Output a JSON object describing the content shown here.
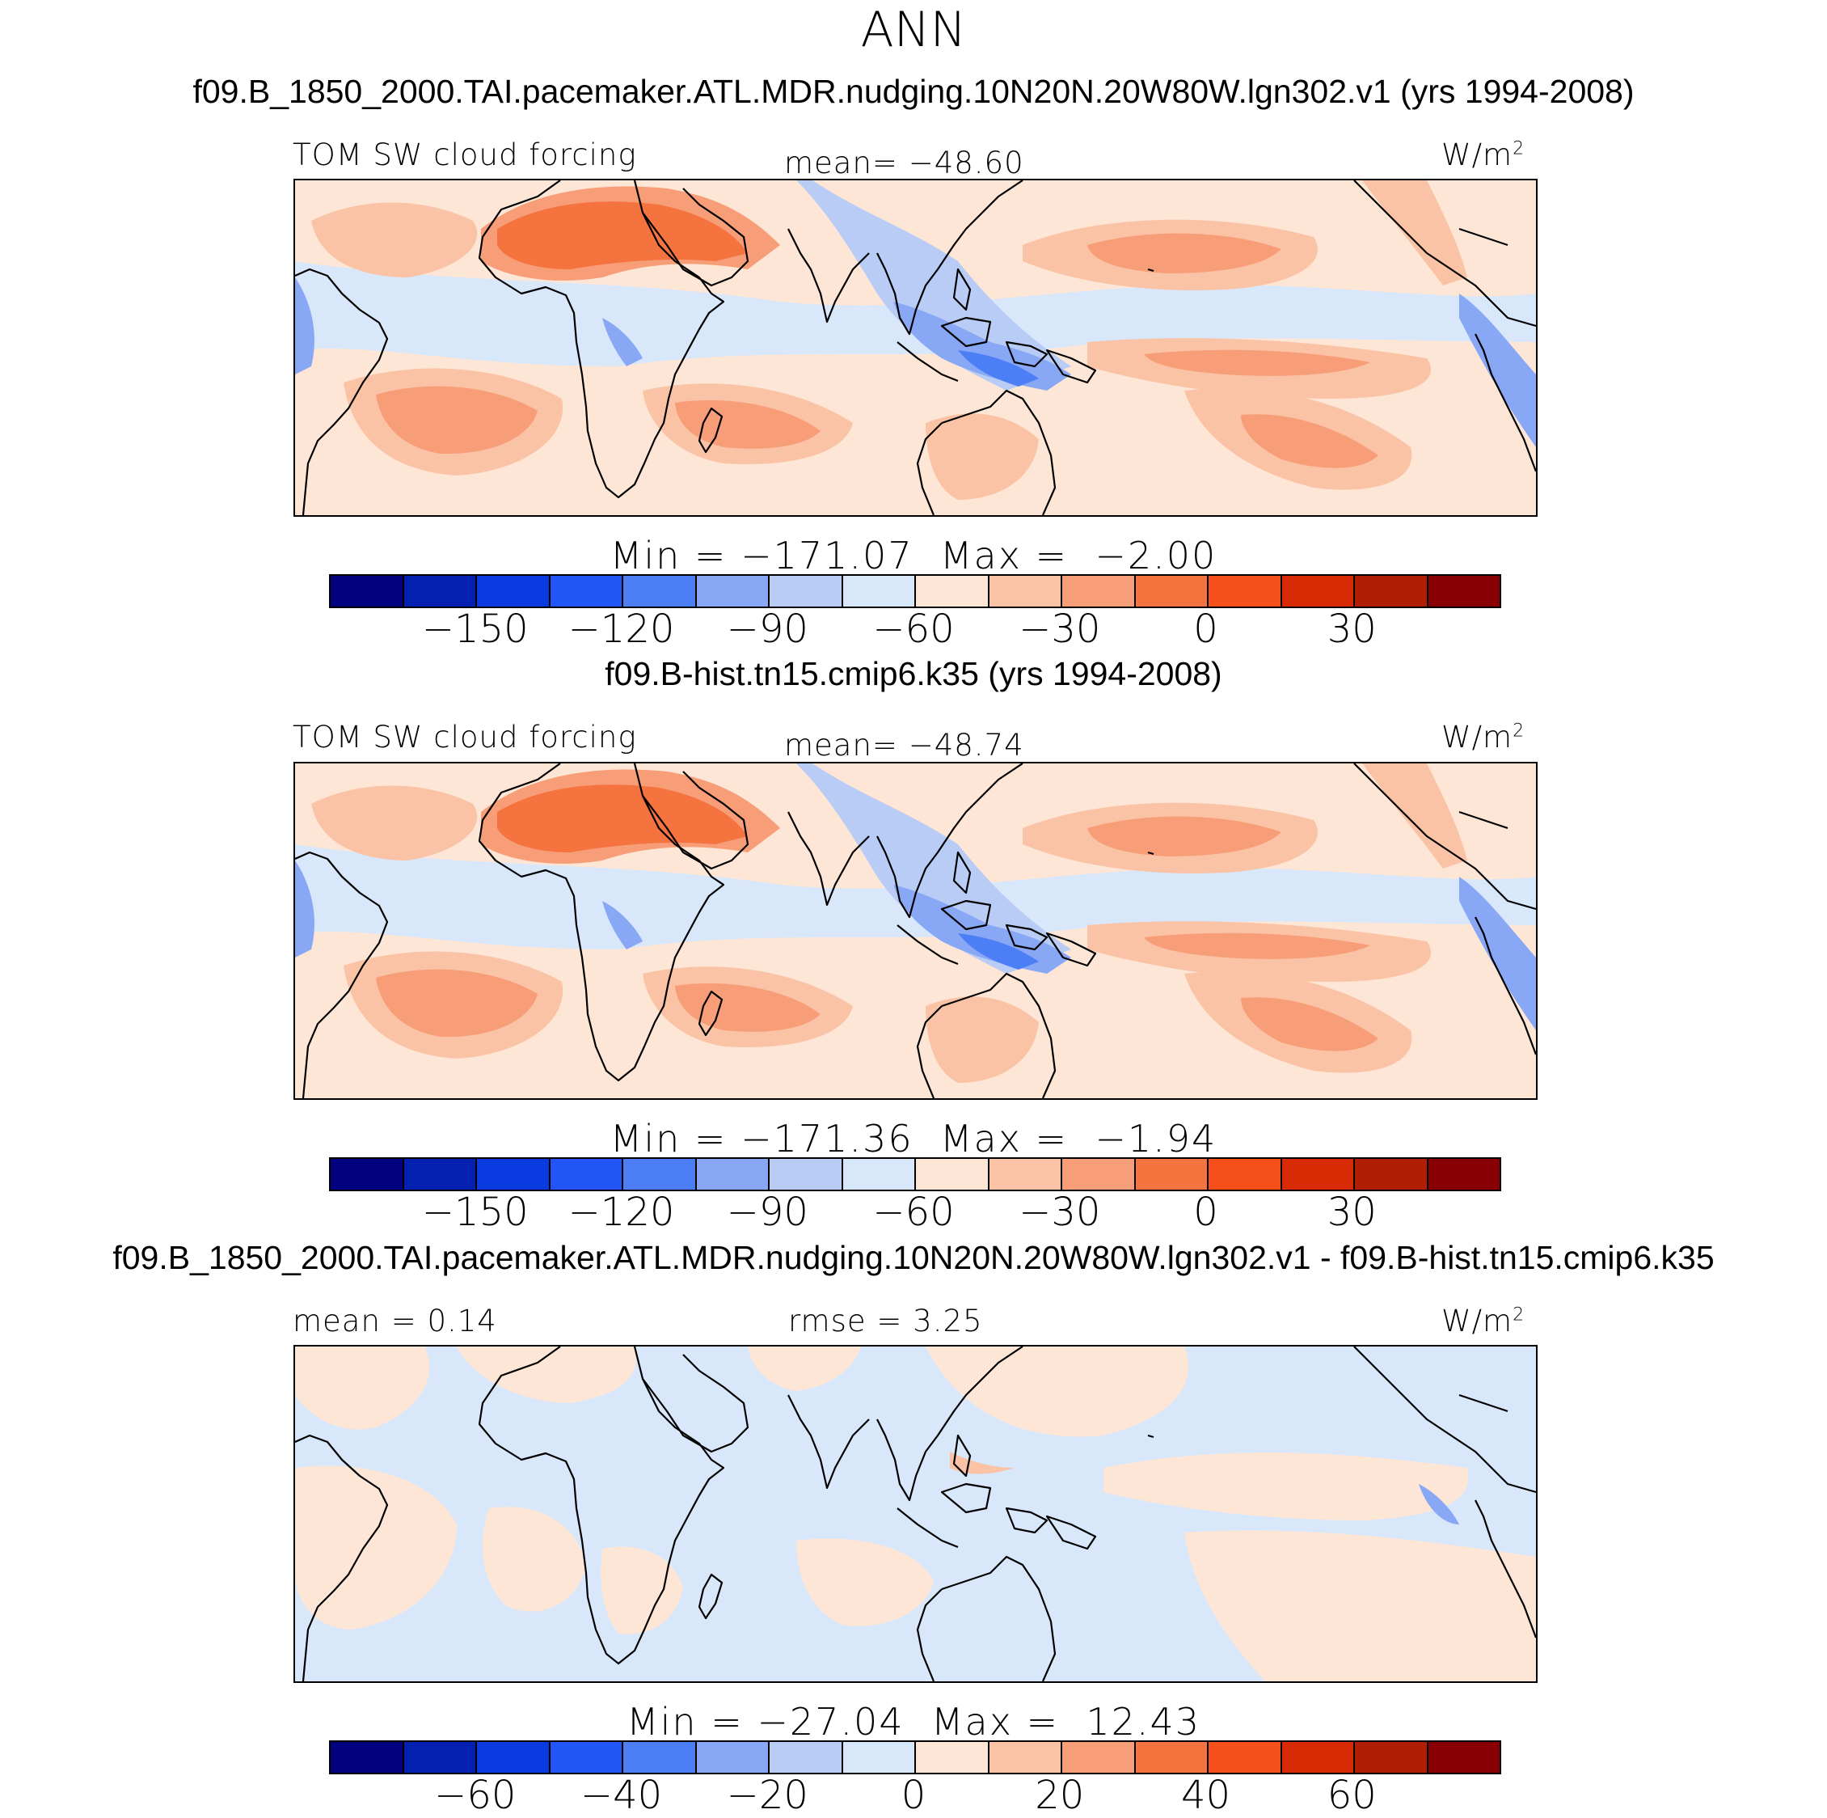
{
  "page": {
    "main_title": "ANN"
  },
  "panels": [
    {
      "case_title": "f09.B_1850_2000.TAI.pacemaker.ATL.MDR.nudging.10N20N.20W80W.lgn302.v1 (yrs 1994-2008)",
      "left_label": "TOM SW cloud forcing",
      "center_label": "mean= −48.60",
      "units": "W/m",
      "units_sup": "2",
      "min_max": "Min = −171.07  Max =  −2.00",
      "ticks": [
        "−150",
        "−120",
        "−90",
        "−60",
        "−30",
        "0",
        "30"
      ],
      "map_kind": "field"
    },
    {
      "case_title": "f09.B-hist.tn15.cmip6.k35 (yrs 1994-2008)",
      "left_label": "TOM SW cloud forcing",
      "center_label": "mean= −48.74",
      "units": "W/m",
      "units_sup": "2",
      "min_max": "Min = −171.36  Max =  −1.94",
      "ticks": [
        "−150",
        "−120",
        "−90",
        "−60",
        "−30",
        "0",
        "30"
      ],
      "map_kind": "field"
    },
    {
      "case_title": "f09.B_1850_2000.TAI.pacemaker.ATL.MDR.nudging.10N20N.20W80W.lgn302.v1 - f09.B-hist.tn15.cmip6.k35",
      "left_label": "mean =   0.14",
      "center_label": "rmse =   3.25",
      "units": "W/m",
      "units_sup": "2",
      "min_max": "Min = −27.04  Max =  12.43",
      "ticks": [
        "−60",
        "−40",
        "−20",
        "0",
        "20",
        "40",
        "60"
      ],
      "map_kind": "diff"
    }
  ],
  "colorbar": {
    "colors": [
      "#02017e",
      "#0320b0",
      "#0a3be0",
      "#2255f5",
      "#4c7ff5",
      "#88a7f5",
      "#b8ccf5",
      "#d9e7fb",
      "#fde6d6",
      "#fbc3a6",
      "#f79d78",
      "#f5733f",
      "#f5501a",
      "#d82a05",
      "#b01e04",
      "#880003"
    ],
    "tick_positions": [
      2,
      4,
      6,
      8,
      10,
      12,
      14
    ]
  },
  "map_colors": {
    "land_line": "#000000",
    "blue_light": "#d9e7fb",
    "blue_mid": "#b8ccf5",
    "blue_deep": "#88a7f5",
    "blue_strong": "#4c7ff5",
    "blue_darkest": "#2255f5",
    "cream": "#fde6d6",
    "salmon": "#fbc3a6",
    "orange": "#f79d78",
    "deep_orange": "#f5733f"
  }
}
